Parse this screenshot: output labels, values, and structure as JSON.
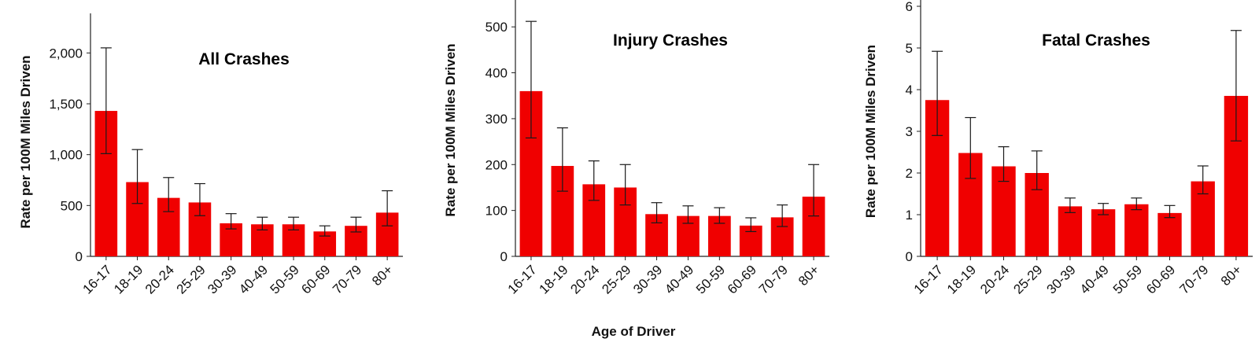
{
  "shared_xlabel": "Age of Driver",
  "bar_color": "#f00000",
  "error_bar_color": "#1a1a1a",
  "chart_data": [
    {
      "type": "bar",
      "title": "All Crashes",
      "xlabel": "",
      "ylabel": "Rate per 100M Miles Driven",
      "categories": [
        "16-17",
        "18-19",
        "20-24",
        "25-29",
        "30-39",
        "40-49",
        "50-59",
        "60-69",
        "70-79",
        "80+"
      ],
      "values": [
        1430,
        730,
        575,
        530,
        325,
        315,
        315,
        245,
        300,
        430
      ],
      "error_low": [
        1010,
        520,
        440,
        400,
        270,
        260,
        260,
        200,
        240,
        300
      ],
      "error_high": [
        2050,
        1050,
        775,
        715,
        420,
        385,
        385,
        300,
        385,
        645
      ],
      "ylim": [
        0,
        2250
      ],
      "yticks": [
        0,
        500,
        1000,
        1500,
        2000
      ],
      "ytick_labels": [
        "0",
        "500",
        "1,000",
        "1,500",
        "2,000"
      ],
      "grid": false
    },
    {
      "type": "bar",
      "title": "Injury Crashes",
      "xlabel": "Age of Driver",
      "ylabel": "Rate per 100M Miles Driven",
      "categories": [
        "16-17",
        "18-19",
        "20-24",
        "25-29",
        "30-39",
        "40-49",
        "50-59",
        "60-69",
        "70-79",
        "80+"
      ],
      "values": [
        360,
        197,
        157,
        150,
        92,
        88,
        88,
        67,
        85,
        130
      ],
      "error_low": [
        258,
        142,
        122,
        112,
        73,
        72,
        72,
        54,
        65,
        88
      ],
      "error_high": [
        512,
        280,
        208,
        200,
        117,
        110,
        106,
        84,
        112,
        200
      ],
      "ylim": [
        0,
        550
      ],
      "yticks": [
        0,
        100,
        200,
        300,
        400,
        500
      ],
      "ytick_labels": [
        "0",
        "100",
        "200",
        "300",
        "400",
        "500"
      ],
      "grid": false
    },
    {
      "type": "bar",
      "title": "Fatal Crashes",
      "xlabel": "",
      "ylabel": "Rate per 100M Miles Driven",
      "categories": [
        "16-17",
        "18-19",
        "20-24",
        "25-29",
        "30-39",
        "40-49",
        "50-59",
        "60-69",
        "70-79",
        "80+"
      ],
      "values": [
        3.75,
        2.48,
        2.16,
        2.0,
        1.2,
        1.13,
        1.25,
        1.04,
        1.8,
        3.85
      ],
      "error_low": [
        2.9,
        1.87,
        1.8,
        1.6,
        1.05,
        1.0,
        1.12,
        0.93,
        1.5,
        2.77
      ],
      "error_high": [
        4.92,
        3.33,
        2.63,
        2.53,
        1.4,
        1.27,
        1.4,
        1.22,
        2.17,
        5.42
      ],
      "ylim": [
        0,
        6
      ],
      "yticks": [
        0,
        1,
        2,
        3,
        4,
        5,
        6
      ],
      "ytick_labels": [
        "0",
        "1",
        "2",
        "3",
        "4",
        "5",
        "6"
      ],
      "grid": false
    }
  ]
}
